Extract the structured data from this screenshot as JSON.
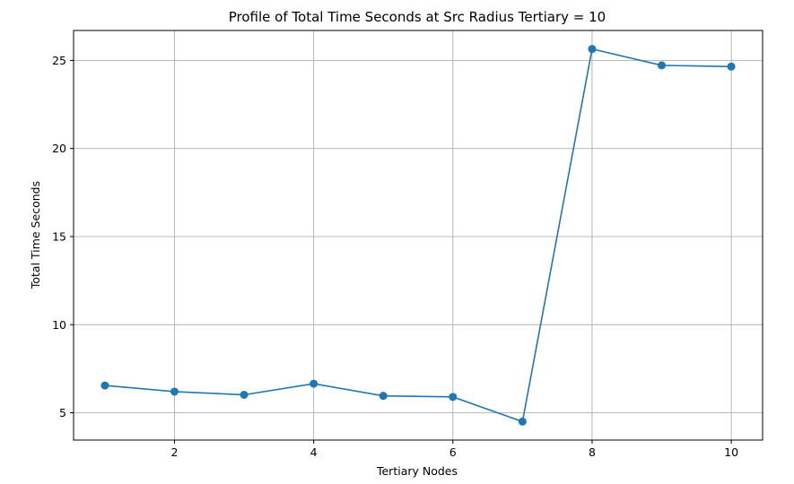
{
  "chart_data": {
    "type": "line",
    "title": "Profile of Total Time Seconds at Src Radius Tertiary = 10",
    "xlabel": "Tertiary Nodes",
    "ylabel": "Total Time Seconds",
    "x": [
      1,
      2,
      3,
      4,
      5,
      6,
      7,
      8,
      9,
      10
    ],
    "series": [
      {
        "values": [
          6.55,
          6.2,
          6.02,
          6.65,
          5.96,
          5.9,
          4.5,
          25.65,
          24.72,
          24.65
        ],
        "color": "#1f77b4",
        "marker": "circle"
      }
    ],
    "xlim": [
      0.55,
      10.45
    ],
    "ylim": [
      3.45,
      26.7
    ],
    "xticks": [
      2,
      4,
      6,
      8,
      10
    ],
    "yticks": [
      5,
      10,
      15,
      20,
      25
    ],
    "grid": true,
    "legend": "none"
  }
}
